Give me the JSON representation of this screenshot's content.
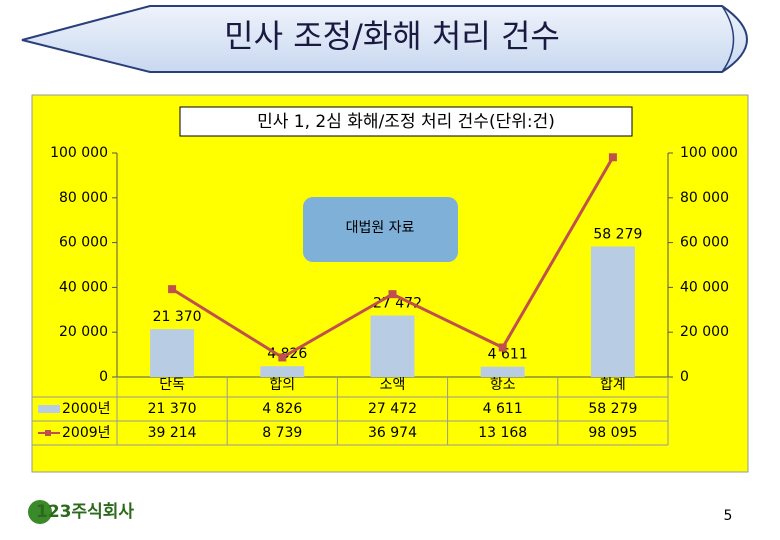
{
  "slide_title": "민사 조정/화해 처리 건수",
  "chart_data": {
    "type": "bar-line",
    "title": "민사 1, 2심 화해/조정 처리 건수(단위:건)",
    "annotation": "대법원 자료",
    "categories": [
      "단독",
      "합의",
      "소액",
      "항소",
      "합계"
    ],
    "series": [
      {
        "name": "2000년",
        "type": "bar",
        "color": "#b8cce4",
        "values": [
          21370,
          4826,
          27472,
          4611,
          58279
        ],
        "value_labels": [
          "21 370",
          "4 826",
          "27 472",
          "4 611",
          "58 279"
        ]
      },
      {
        "name": "2009년",
        "type": "line",
        "color": "#c0504d",
        "values": [
          39214,
          8739,
          36974,
          13168,
          98095
        ],
        "value_labels": [
          "39 214",
          "8 739",
          "36 974",
          "13 168",
          "98 095"
        ]
      }
    ],
    "ylim": [
      0,
      100000
    ],
    "yticks": [
      0,
      {
        "value": 20000,
        "label": "20 000"
      },
      {
        "value": 40000,
        "label": "40 000"
      },
      {
        "value": 60000,
        "label": "60 000"
      },
      {
        "value": 80000,
        "label": "80 000"
      },
      {
        "value": 100000,
        "label": "100 000"
      }
    ],
    "y2lim": [
      0,
      100000
    ],
    "y2ticks": [
      0,
      {
        "value": 20000,
        "label": "20 000"
      },
      {
        "value": 40000,
        "label": "40 000"
      },
      {
        "value": 60000,
        "label": "60 000"
      },
      {
        "value": 80000,
        "label": "80 000"
      },
      {
        "value": 100000,
        "label": "100 000"
      }
    ],
    "grid": false,
    "data_table": true
  },
  "logo": "123주식회사",
  "page_number": "5"
}
